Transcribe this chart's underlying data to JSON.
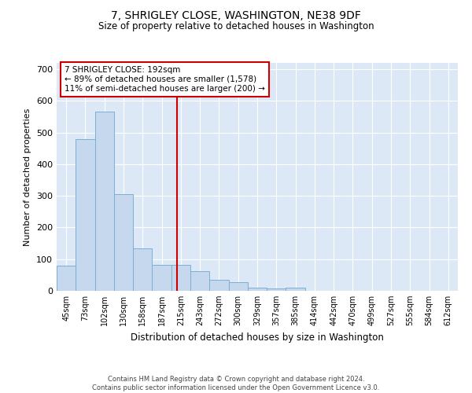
{
  "title": "7, SHRIGLEY CLOSE, WASHINGTON, NE38 9DF",
  "subtitle": "Size of property relative to detached houses in Washington",
  "xlabel": "Distribution of detached houses by size in Washington",
  "ylabel": "Number of detached properties",
  "bar_color": "#c5d8ed",
  "bar_edge_color": "#7bafd4",
  "bg_color": "#dce8f5",
  "categories": [
    "45sqm",
    "73sqm",
    "102sqm",
    "130sqm",
    "158sqm",
    "187sqm",
    "215sqm",
    "243sqm",
    "272sqm",
    "300sqm",
    "329sqm",
    "357sqm",
    "385sqm",
    "414sqm",
    "442sqm",
    "470sqm",
    "499sqm",
    "527sqm",
    "555sqm",
    "584sqm",
    "612sqm"
  ],
  "values": [
    80,
    480,
    565,
    305,
    135,
    83,
    83,
    63,
    35,
    28,
    10,
    8,
    10,
    0,
    0,
    0,
    0,
    0,
    0,
    0,
    0
  ],
  "vline_x": 5.78,
  "vline_color": "#cc0000",
  "annotation_text": "7 SHRIGLEY CLOSE: 192sqm\n← 89% of detached houses are smaller (1,578)\n11% of semi-detached houses are larger (200) →",
  "annotation_box_color": "#cc0000",
  "ylim": [
    0,
    720
  ],
  "yticks": [
    0,
    100,
    200,
    300,
    400,
    500,
    600,
    700
  ],
  "footer1": "Contains HM Land Registry data © Crown copyright and database right 2024.",
  "footer2": "Contains public sector information licensed under the Open Government Licence v3.0."
}
